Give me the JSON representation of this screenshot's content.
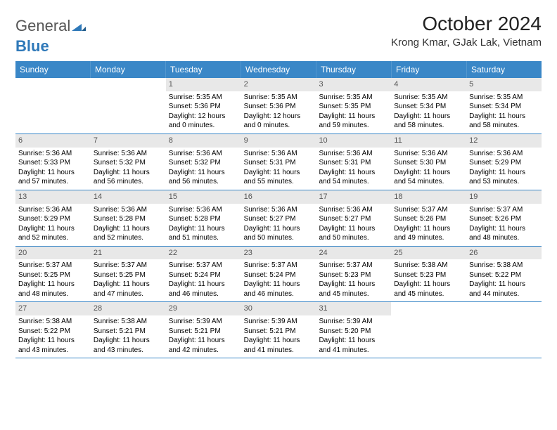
{
  "logo": {
    "text_prefix": "General",
    "text_suffix": "Blue"
  },
  "title": "October 2024",
  "location": "Krong Kmar, GJak Lak, Vietnam",
  "colors": {
    "header_bg": "#3a87c7",
    "header_text": "#ffffff",
    "daynum_bg": "#e8e8e8",
    "daynum_text": "#555555",
    "border": "#3a87c7",
    "body_bg": "#ffffff",
    "text": "#000000",
    "logo_gray": "#555555",
    "logo_blue": "#2f79b9"
  },
  "day_names": [
    "Sunday",
    "Monday",
    "Tuesday",
    "Wednesday",
    "Thursday",
    "Friday",
    "Saturday"
  ],
  "weeks": [
    [
      {
        "day": "",
        "sunrise": "",
        "sunset": "",
        "daylight": ""
      },
      {
        "day": "",
        "sunrise": "",
        "sunset": "",
        "daylight": ""
      },
      {
        "day": "1",
        "sunrise": "Sunrise: 5:35 AM",
        "sunset": "Sunset: 5:36 PM",
        "daylight": "Daylight: 12 hours and 0 minutes."
      },
      {
        "day": "2",
        "sunrise": "Sunrise: 5:35 AM",
        "sunset": "Sunset: 5:36 PM",
        "daylight": "Daylight: 12 hours and 0 minutes."
      },
      {
        "day": "3",
        "sunrise": "Sunrise: 5:35 AM",
        "sunset": "Sunset: 5:35 PM",
        "daylight": "Daylight: 11 hours and 59 minutes."
      },
      {
        "day": "4",
        "sunrise": "Sunrise: 5:35 AM",
        "sunset": "Sunset: 5:34 PM",
        "daylight": "Daylight: 11 hours and 58 minutes."
      },
      {
        "day": "5",
        "sunrise": "Sunrise: 5:35 AM",
        "sunset": "Sunset: 5:34 PM",
        "daylight": "Daylight: 11 hours and 58 minutes."
      }
    ],
    [
      {
        "day": "6",
        "sunrise": "Sunrise: 5:36 AM",
        "sunset": "Sunset: 5:33 PM",
        "daylight": "Daylight: 11 hours and 57 minutes."
      },
      {
        "day": "7",
        "sunrise": "Sunrise: 5:36 AM",
        "sunset": "Sunset: 5:32 PM",
        "daylight": "Daylight: 11 hours and 56 minutes."
      },
      {
        "day": "8",
        "sunrise": "Sunrise: 5:36 AM",
        "sunset": "Sunset: 5:32 PM",
        "daylight": "Daylight: 11 hours and 56 minutes."
      },
      {
        "day": "9",
        "sunrise": "Sunrise: 5:36 AM",
        "sunset": "Sunset: 5:31 PM",
        "daylight": "Daylight: 11 hours and 55 minutes."
      },
      {
        "day": "10",
        "sunrise": "Sunrise: 5:36 AM",
        "sunset": "Sunset: 5:31 PM",
        "daylight": "Daylight: 11 hours and 54 minutes."
      },
      {
        "day": "11",
        "sunrise": "Sunrise: 5:36 AM",
        "sunset": "Sunset: 5:30 PM",
        "daylight": "Daylight: 11 hours and 54 minutes."
      },
      {
        "day": "12",
        "sunrise": "Sunrise: 5:36 AM",
        "sunset": "Sunset: 5:29 PM",
        "daylight": "Daylight: 11 hours and 53 minutes."
      }
    ],
    [
      {
        "day": "13",
        "sunrise": "Sunrise: 5:36 AM",
        "sunset": "Sunset: 5:29 PM",
        "daylight": "Daylight: 11 hours and 52 minutes."
      },
      {
        "day": "14",
        "sunrise": "Sunrise: 5:36 AM",
        "sunset": "Sunset: 5:28 PM",
        "daylight": "Daylight: 11 hours and 52 minutes."
      },
      {
        "day": "15",
        "sunrise": "Sunrise: 5:36 AM",
        "sunset": "Sunset: 5:28 PM",
        "daylight": "Daylight: 11 hours and 51 minutes."
      },
      {
        "day": "16",
        "sunrise": "Sunrise: 5:36 AM",
        "sunset": "Sunset: 5:27 PM",
        "daylight": "Daylight: 11 hours and 50 minutes."
      },
      {
        "day": "17",
        "sunrise": "Sunrise: 5:36 AM",
        "sunset": "Sunset: 5:27 PM",
        "daylight": "Daylight: 11 hours and 50 minutes."
      },
      {
        "day": "18",
        "sunrise": "Sunrise: 5:37 AM",
        "sunset": "Sunset: 5:26 PM",
        "daylight": "Daylight: 11 hours and 49 minutes."
      },
      {
        "day": "19",
        "sunrise": "Sunrise: 5:37 AM",
        "sunset": "Sunset: 5:26 PM",
        "daylight": "Daylight: 11 hours and 48 minutes."
      }
    ],
    [
      {
        "day": "20",
        "sunrise": "Sunrise: 5:37 AM",
        "sunset": "Sunset: 5:25 PM",
        "daylight": "Daylight: 11 hours and 48 minutes."
      },
      {
        "day": "21",
        "sunrise": "Sunrise: 5:37 AM",
        "sunset": "Sunset: 5:25 PM",
        "daylight": "Daylight: 11 hours and 47 minutes."
      },
      {
        "day": "22",
        "sunrise": "Sunrise: 5:37 AM",
        "sunset": "Sunset: 5:24 PM",
        "daylight": "Daylight: 11 hours and 46 minutes."
      },
      {
        "day": "23",
        "sunrise": "Sunrise: 5:37 AM",
        "sunset": "Sunset: 5:24 PM",
        "daylight": "Daylight: 11 hours and 46 minutes."
      },
      {
        "day": "24",
        "sunrise": "Sunrise: 5:37 AM",
        "sunset": "Sunset: 5:23 PM",
        "daylight": "Daylight: 11 hours and 45 minutes."
      },
      {
        "day": "25",
        "sunrise": "Sunrise: 5:38 AM",
        "sunset": "Sunset: 5:23 PM",
        "daylight": "Daylight: 11 hours and 45 minutes."
      },
      {
        "day": "26",
        "sunrise": "Sunrise: 5:38 AM",
        "sunset": "Sunset: 5:22 PM",
        "daylight": "Daylight: 11 hours and 44 minutes."
      }
    ],
    [
      {
        "day": "27",
        "sunrise": "Sunrise: 5:38 AM",
        "sunset": "Sunset: 5:22 PM",
        "daylight": "Daylight: 11 hours and 43 minutes."
      },
      {
        "day": "28",
        "sunrise": "Sunrise: 5:38 AM",
        "sunset": "Sunset: 5:21 PM",
        "daylight": "Daylight: 11 hours and 43 minutes."
      },
      {
        "day": "29",
        "sunrise": "Sunrise: 5:39 AM",
        "sunset": "Sunset: 5:21 PM",
        "daylight": "Daylight: 11 hours and 42 minutes."
      },
      {
        "day": "30",
        "sunrise": "Sunrise: 5:39 AM",
        "sunset": "Sunset: 5:21 PM",
        "daylight": "Daylight: 11 hours and 41 minutes."
      },
      {
        "day": "31",
        "sunrise": "Sunrise: 5:39 AM",
        "sunset": "Sunset: 5:20 PM",
        "daylight": "Daylight: 11 hours and 41 minutes."
      },
      {
        "day": "",
        "sunrise": "",
        "sunset": "",
        "daylight": ""
      },
      {
        "day": "",
        "sunrise": "",
        "sunset": "",
        "daylight": ""
      }
    ]
  ]
}
